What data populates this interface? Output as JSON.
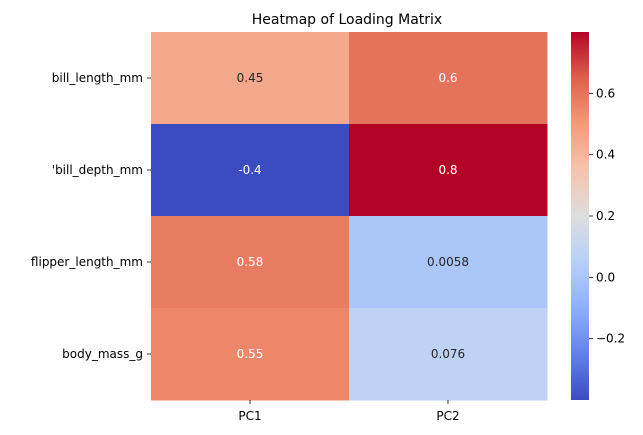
{
  "chart_data": {
    "type": "heatmap",
    "title": "Heatmap of Loading Matrix",
    "xlabel": "",
    "ylabel": "",
    "columns": [
      "PC1",
      "PC2"
    ],
    "rows": [
      "bill_length_mm",
      "'bill_depth_mm",
      "flipper_length_mm",
      "body_mass_g"
    ],
    "values": [
      [
        0.45,
        0.6
      ],
      [
        -0.4,
        0.8
      ],
      [
        0.58,
        0.0058
      ],
      [
        0.55,
        0.076
      ]
    ],
    "value_labels": [
      [
        "0.45",
        "0.6"
      ],
      [
        "-0.4",
        "0.8"
      ],
      [
        "0.58",
        "0.0058"
      ],
      [
        "0.55",
        "0.076"
      ]
    ],
    "colormap": "coolwarm",
    "colorbar": {
      "vmin": -0.4,
      "vmax": 0.8,
      "ticks": [
        -0.2,
        0.0,
        0.2,
        0.4,
        0.6
      ],
      "tick_labels": [
        "−0.2",
        "0.0",
        "0.2",
        "0.4",
        "0.6"
      ]
    },
    "annotations_shown": true,
    "grid": false
  }
}
